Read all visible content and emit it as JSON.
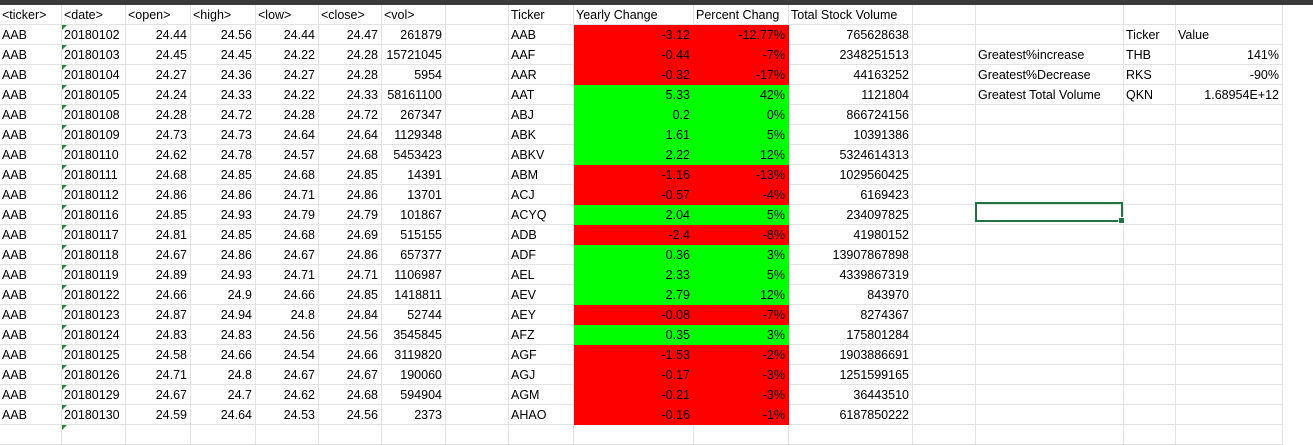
{
  "raw_headers": [
    "<ticker>",
    "<date>",
    "<open>",
    "<high>",
    "<low>",
    "<close>",
    "<vol>"
  ],
  "raw_rows": [
    [
      "AAB",
      "20180102",
      "24.44",
      "24.56",
      "24.44",
      "24.47",
      "261879"
    ],
    [
      "AAB",
      "20180103",
      "24.45",
      "24.45",
      "24.22",
      "24.28",
      "15721045"
    ],
    [
      "AAB",
      "20180104",
      "24.27",
      "24.36",
      "24.27",
      "24.28",
      "5954"
    ],
    [
      "AAB",
      "20180105",
      "24.24",
      "24.33",
      "24.22",
      "24.33",
      "58161100"
    ],
    [
      "AAB",
      "20180108",
      "24.28",
      "24.72",
      "24.28",
      "24.72",
      "267347"
    ],
    [
      "AAB",
      "20180109",
      "24.73",
      "24.73",
      "24.64",
      "24.64",
      "1129348"
    ],
    [
      "AAB",
      "20180110",
      "24.62",
      "24.78",
      "24.57",
      "24.68",
      "5453423"
    ],
    [
      "AAB",
      "20180111",
      "24.68",
      "24.85",
      "24.68",
      "24.85",
      "14391"
    ],
    [
      "AAB",
      "20180112",
      "24.86",
      "24.86",
      "24.71",
      "24.86",
      "13701"
    ],
    [
      "AAB",
      "20180116",
      "24.85",
      "24.93",
      "24.79",
      "24.79",
      "101867"
    ],
    [
      "AAB",
      "20180117",
      "24.81",
      "24.85",
      "24.68",
      "24.69",
      "515155"
    ],
    [
      "AAB",
      "20180118",
      "24.67",
      "24.86",
      "24.67",
      "24.86",
      "657377"
    ],
    [
      "AAB",
      "20180119",
      "24.89",
      "24.93",
      "24.71",
      "24.71",
      "1106987"
    ],
    [
      "AAB",
      "20180122",
      "24.66",
      "24.9",
      "24.66",
      "24.85",
      "1418811"
    ],
    [
      "AAB",
      "20180123",
      "24.87",
      "24.94",
      "24.8",
      "24.84",
      "52744"
    ],
    [
      "AAB",
      "20180124",
      "24.83",
      "24.83",
      "24.56",
      "24.56",
      "3545845"
    ],
    [
      "AAB",
      "20180125",
      "24.58",
      "24.66",
      "24.54",
      "24.66",
      "3119820"
    ],
    [
      "AAB",
      "20180126",
      "24.71",
      "24.8",
      "24.67",
      "24.67",
      "190060"
    ],
    [
      "AAB",
      "20180129",
      "24.67",
      "24.7",
      "24.62",
      "24.68",
      "594904"
    ],
    [
      "AAB",
      "20180130",
      "24.59",
      "24.64",
      "24.53",
      "24.56",
      "2373"
    ]
  ],
  "summary_headers": [
    "Ticker",
    "Yearly Change",
    "Percent Chang",
    "Total Stock Volume"
  ],
  "summary_rows": [
    [
      "AAB",
      "-3.12",
      "-12.77%",
      "765628638",
      "negative"
    ],
    [
      "AAF",
      "-0.44",
      "-7%",
      "2348251513",
      "negative"
    ],
    [
      "AAR",
      "-0.32",
      "-17%",
      "44163252",
      "negative"
    ],
    [
      "AAT",
      "5.33",
      "42%",
      "1121804",
      "positive"
    ],
    [
      "ABJ",
      "0.2",
      "0%",
      "866724156",
      "positive"
    ],
    [
      "ABK",
      "1.61",
      "5%",
      "10391386",
      "positive"
    ],
    [
      "ABKV",
      "2.22",
      "12%",
      "5324614313",
      "positive"
    ],
    [
      "ABM",
      "-1.16",
      "-13%",
      "1029560425",
      "negative"
    ],
    [
      "ACJ",
      "-0.57",
      "-4%",
      "6169423",
      "negative"
    ],
    [
      "ACYQ",
      "2.04",
      "5%",
      "234097825",
      "positive"
    ],
    [
      "ADB",
      "-2.4",
      "-8%",
      "41980152",
      "negative"
    ],
    [
      "ADF",
      "0.36",
      "3%",
      "13907867898",
      "positive"
    ],
    [
      "AEL",
      "2.33",
      "5%",
      "4339867319",
      "positive"
    ],
    [
      "AEV",
      "2.79",
      "12%",
      "843970",
      "positive"
    ],
    [
      "AEY",
      "-0.08",
      "-7%",
      "8274367",
      "negative"
    ],
    [
      "AFZ",
      "0.35",
      "3%",
      "175801284",
      "positive"
    ],
    [
      "AGF",
      "-1.53",
      "-2%",
      "1903886691",
      "negative"
    ],
    [
      "AGJ",
      "-0.17",
      "-3%",
      "1251599165",
      "negative"
    ],
    [
      "AGM",
      "-0.21",
      "-3%",
      "36443510",
      "negative"
    ],
    [
      "AHAO",
      "-0.16",
      "-1%",
      "6187850222",
      "negative"
    ]
  ],
  "greatest": {
    "headers": [
      "Ticker",
      "Value"
    ],
    "rows": [
      [
        "Greatest%increase",
        "THB",
        "141%"
      ],
      [
        "Greatest%Decrease",
        "RKS",
        "-90%"
      ],
      [
        "Greatest Total Volume",
        "QKN",
        "1.68954E+12"
      ]
    ]
  },
  "colors": {
    "negative": "#ff0000",
    "positive": "#00ff00",
    "selection": "#217346",
    "topbar": "#3a3a3a"
  }
}
